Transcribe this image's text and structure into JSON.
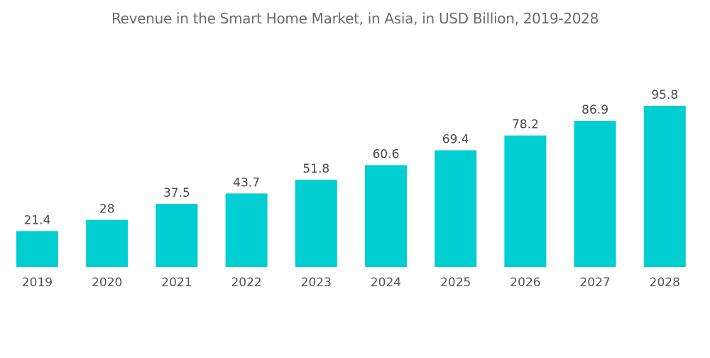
{
  "chart_data": {
    "type": "bar",
    "title": "Revenue in the Smart Home Market, in Asia, in USD Billion, 2019-2028",
    "xlabel": "",
    "ylabel": "",
    "categories": [
      "2019",
      "2020",
      "2021",
      "2022",
      "2023",
      "2024",
      "2025",
      "2026",
      "2027",
      "2028"
    ],
    "values": [
      21.4,
      28,
      37.5,
      43.7,
      51.8,
      60.6,
      69.4,
      78.2,
      86.9,
      95.8
    ],
    "value_labels": [
      "21.4",
      "28",
      "37.5",
      "43.7",
      "51.8",
      "60.6",
      "69.4",
      "78.2",
      "86.9",
      "95.8"
    ],
    "ylim": [
      0,
      100
    ],
    "grid": false,
    "legend": "none",
    "bar_color": "#00ced1"
  }
}
